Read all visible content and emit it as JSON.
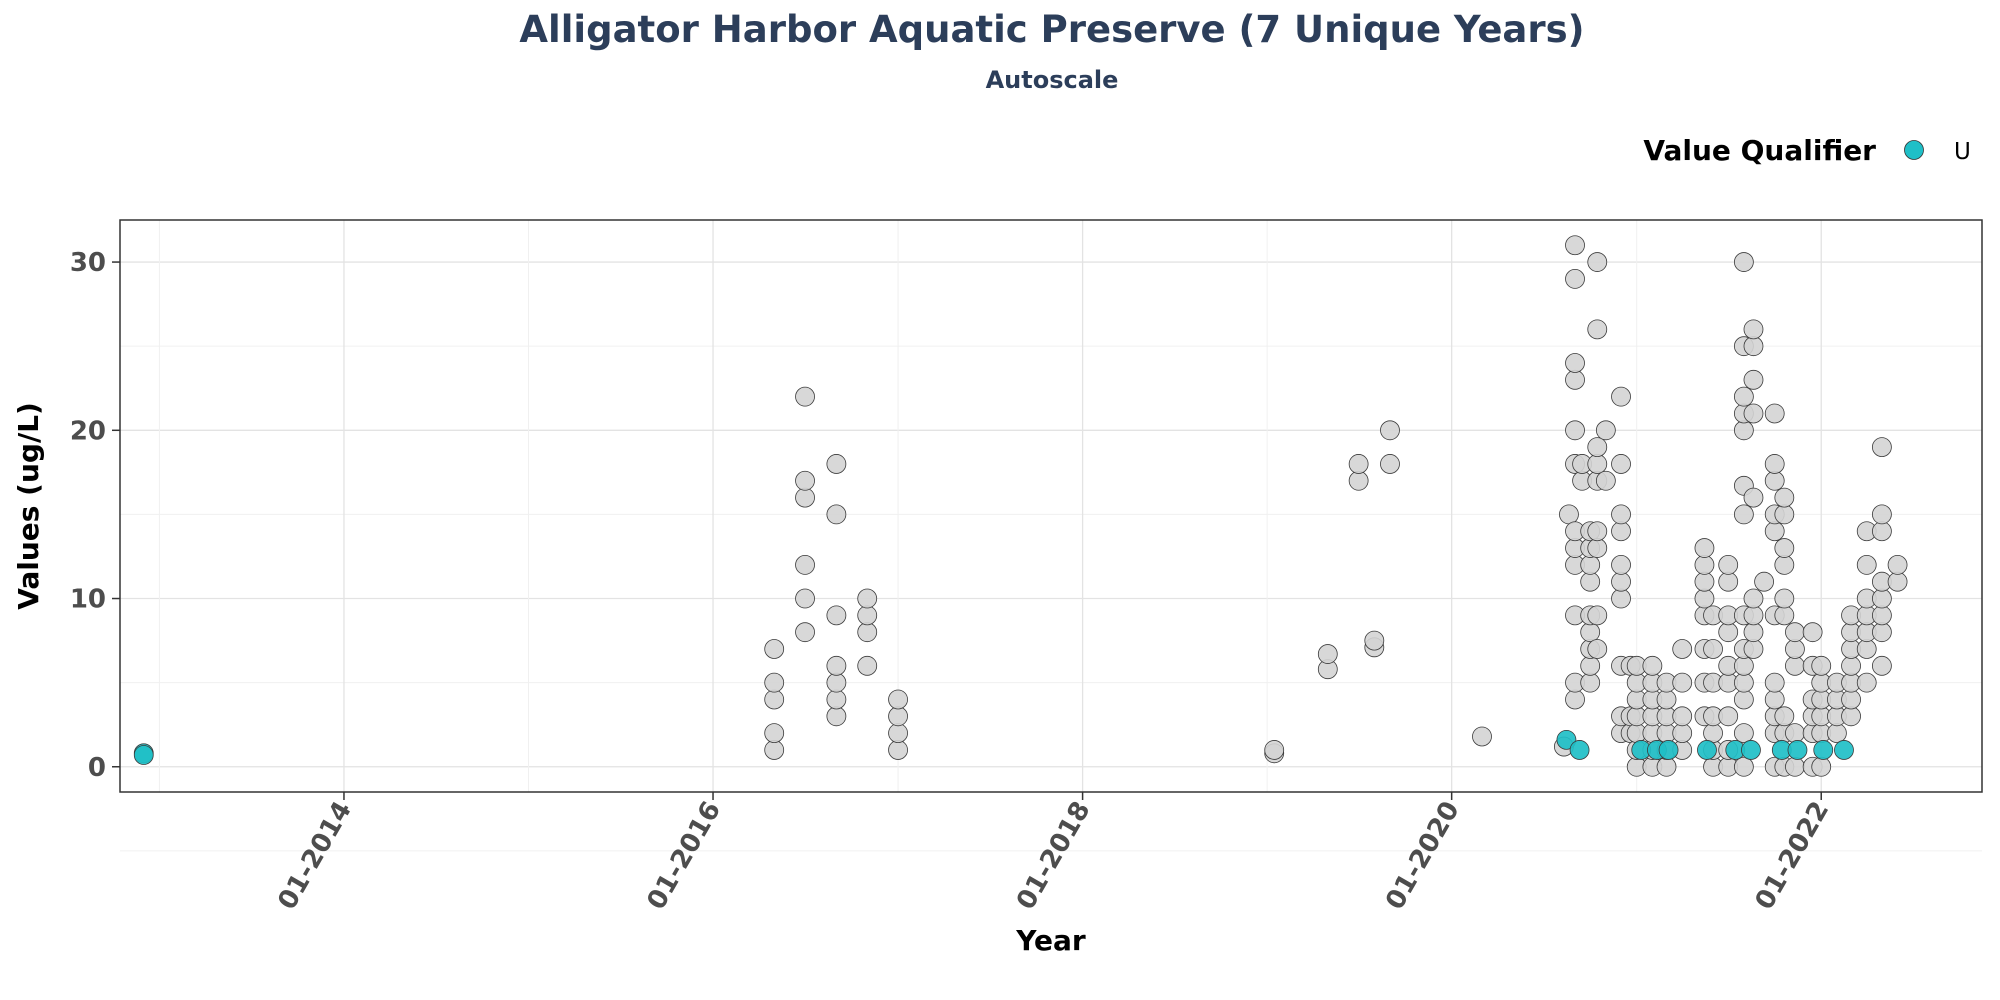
{
  "chart_data": {
    "type": "scatter",
    "title": "Alligator Harbor Aquatic Preserve (7 Unique Years)",
    "subtitle": "Autoscale",
    "xlabel": "Year",
    "ylabel": "Values (ug/L)",
    "legend": {
      "title": "Value Qualifier",
      "entries": [
        "U"
      ],
      "placement": "top-right"
    },
    "x_tick_labels": [
      "01-2014",
      "01-2016",
      "01-2018",
      "01-2020",
      "01-2022"
    ],
    "y_tick_labels": [
      "0",
      "10",
      "20",
      "30"
    ],
    "xlim": [
      "2012-10-15",
      "2022-11-15"
    ],
    "ylim": [
      -1.5,
      32.5
    ],
    "grid": true,
    "colors": {
      "qualified": "#1fbfc7",
      "unqualified": "#d4d4d4",
      "title": "#2c3e5a"
    },
    "series": [
      {
        "qualifier": "none",
        "points": [
          [
            "2016-05-01",
            1
          ],
          [
            "2016-05-01",
            2
          ],
          [
            "2016-05-01",
            4
          ],
          [
            "2016-05-01",
            5
          ],
          [
            "2016-05-01",
            7
          ],
          [
            "2016-07-01",
            8
          ],
          [
            "2016-07-01",
            10
          ],
          [
            "2016-07-01",
            12
          ],
          [
            "2016-07-01",
            16
          ],
          [
            "2016-07-01",
            17
          ],
          [
            "2016-07-01",
            22
          ],
          [
            "2016-09-01",
            3
          ],
          [
            "2016-09-01",
            4
          ],
          [
            "2016-09-01",
            5
          ],
          [
            "2016-09-01",
            6
          ],
          [
            "2016-09-01",
            9
          ],
          [
            "2016-09-01",
            15
          ],
          [
            "2016-09-01",
            18
          ],
          [
            "2016-11-01",
            6
          ],
          [
            "2016-11-01",
            8
          ],
          [
            "2016-11-01",
            9
          ],
          [
            "2016-11-01",
            10
          ],
          [
            "2017-01-01",
            1
          ],
          [
            "2017-01-01",
            2
          ],
          [
            "2017-01-01",
            3
          ],
          [
            "2017-01-01",
            4
          ],
          [
            "2019-01-15",
            0.8
          ],
          [
            "2019-01-15",
            1
          ],
          [
            "2019-05-01",
            5.8
          ],
          [
            "2019-05-01",
            6.7
          ],
          [
            "2019-07-01",
            17
          ],
          [
            "2019-07-01",
            18
          ],
          [
            "2019-08-01",
            7.1
          ],
          [
            "2019-08-01",
            7.5
          ],
          [
            "2019-09-01",
            18
          ],
          [
            "2019-09-01",
            20
          ],
          [
            "2020-03-01",
            1.8
          ],
          [
            "2020-08-10",
            1.2
          ],
          [
            "2020-08-20",
            15
          ],
          [
            "2020-09-01",
            4
          ],
          [
            "2020-09-01",
            5
          ],
          [
            "2020-09-01",
            9
          ],
          [
            "2020-09-01",
            12
          ],
          [
            "2020-09-01",
            13
          ],
          [
            "2020-09-01",
            14
          ],
          [
            "2020-09-01",
            18
          ],
          [
            "2020-09-01",
            20
          ],
          [
            "2020-09-01",
            23
          ],
          [
            "2020-09-01",
            24
          ],
          [
            "2020-09-01",
            29
          ],
          [
            "2020-09-01",
            31
          ],
          [
            "2020-09-15",
            17
          ],
          [
            "2020-09-15",
            18
          ],
          [
            "2020-10-01",
            5
          ],
          [
            "2020-10-01",
            6
          ],
          [
            "2020-10-01",
            7
          ],
          [
            "2020-10-01",
            8
          ],
          [
            "2020-10-01",
            9
          ],
          [
            "2020-10-01",
            11
          ],
          [
            "2020-10-01",
            12
          ],
          [
            "2020-10-01",
            13
          ],
          [
            "2020-10-01",
            14
          ],
          [
            "2020-10-15",
            7
          ],
          [
            "2020-10-15",
            9
          ],
          [
            "2020-10-15",
            13
          ],
          [
            "2020-10-15",
            14
          ],
          [
            "2020-10-15",
            17
          ],
          [
            "2020-10-15",
            18
          ],
          [
            "2020-10-15",
            19
          ],
          [
            "2020-10-15",
            26
          ],
          [
            "2020-10-15",
            30
          ],
          [
            "2020-11-01",
            17
          ],
          [
            "2020-11-01",
            20
          ],
          [
            "2020-12-01",
            2
          ],
          [
            "2020-12-01",
            3
          ],
          [
            "2020-12-01",
            6
          ],
          [
            "2020-12-01",
            10
          ],
          [
            "2020-12-01",
            11
          ],
          [
            "2020-12-01",
            12
          ],
          [
            "2020-12-01",
            14
          ],
          [
            "2020-12-01",
            15
          ],
          [
            "2020-12-01",
            18
          ],
          [
            "2020-12-01",
            22
          ],
          [
            "2020-12-20",
            2
          ],
          [
            "2020-12-20",
            3
          ],
          [
            "2020-12-20",
            6
          ],
          [
            "2021-01-01",
            0
          ],
          [
            "2021-01-01",
            1
          ],
          [
            "2021-01-01",
            2
          ],
          [
            "2021-01-01",
            3
          ],
          [
            "2021-01-01",
            4
          ],
          [
            "2021-01-01",
            5
          ],
          [
            "2021-01-01",
            6
          ],
          [
            "2021-02-01",
            0
          ],
          [
            "2021-02-01",
            1
          ],
          [
            "2021-02-01",
            2
          ],
          [
            "2021-02-01",
            3
          ],
          [
            "2021-02-01",
            4
          ],
          [
            "2021-02-01",
            5
          ],
          [
            "2021-02-01",
            6
          ],
          [
            "2021-03-01",
            0
          ],
          [
            "2021-03-01",
            1
          ],
          [
            "2021-03-01",
            2
          ],
          [
            "2021-03-01",
            3
          ],
          [
            "2021-03-01",
            4
          ],
          [
            "2021-03-01",
            5
          ],
          [
            "2021-04-01",
            1
          ],
          [
            "2021-04-01",
            2
          ],
          [
            "2021-04-01",
            3
          ],
          [
            "2021-04-01",
            5
          ],
          [
            "2021-04-01",
            7
          ],
          [
            "2021-05-15",
            3
          ],
          [
            "2021-05-15",
            5
          ],
          [
            "2021-05-15",
            7
          ],
          [
            "2021-05-15",
            9
          ],
          [
            "2021-05-15",
            10
          ],
          [
            "2021-05-15",
            11
          ],
          [
            "2021-05-15",
            12
          ],
          [
            "2021-05-15",
            13
          ],
          [
            "2021-06-01",
            0
          ],
          [
            "2021-06-01",
            1
          ],
          [
            "2021-06-01",
            2
          ],
          [
            "2021-06-01",
            3
          ],
          [
            "2021-06-01",
            5
          ],
          [
            "2021-06-01",
            7
          ],
          [
            "2021-06-01",
            9
          ],
          [
            "2021-07-01",
            0
          ],
          [
            "2021-07-01",
            1
          ],
          [
            "2021-07-01",
            3
          ],
          [
            "2021-07-01",
            5
          ],
          [
            "2021-07-01",
            6
          ],
          [
            "2021-07-01",
            8
          ],
          [
            "2021-07-01",
            9
          ],
          [
            "2021-07-01",
            11
          ],
          [
            "2021-07-01",
            12
          ],
          [
            "2021-08-01",
            0
          ],
          [
            "2021-08-01",
            2
          ],
          [
            "2021-08-01",
            4
          ],
          [
            "2021-08-01",
            5
          ],
          [
            "2021-08-01",
            6
          ],
          [
            "2021-08-01",
            7
          ],
          [
            "2021-08-01",
            9
          ],
          [
            "2021-08-01",
            15
          ],
          [
            "2021-08-01",
            16.7
          ],
          [
            "2021-08-01",
            20
          ],
          [
            "2021-08-01",
            21
          ],
          [
            "2021-08-01",
            22
          ],
          [
            "2021-08-01",
            25
          ],
          [
            "2021-08-01",
            30
          ],
          [
            "2021-08-20",
            7
          ],
          [
            "2021-08-20",
            8
          ],
          [
            "2021-08-20",
            9
          ],
          [
            "2021-08-20",
            10
          ],
          [
            "2021-08-20",
            16
          ],
          [
            "2021-08-20",
            21
          ],
          [
            "2021-08-20",
            23
          ],
          [
            "2021-08-20",
            25
          ],
          [
            "2021-08-20",
            26
          ],
          [
            "2021-09-10",
            11
          ],
          [
            "2021-10-01",
            0
          ],
          [
            "2021-10-01",
            2
          ],
          [
            "2021-10-01",
            3
          ],
          [
            "2021-10-01",
            4
          ],
          [
            "2021-10-01",
            5
          ],
          [
            "2021-10-01",
            9
          ],
          [
            "2021-10-01",
            14
          ],
          [
            "2021-10-01",
            15
          ],
          [
            "2021-10-01",
            17
          ],
          [
            "2021-10-01",
            18
          ],
          [
            "2021-10-01",
            21
          ],
          [
            "2021-10-20",
            0
          ],
          [
            "2021-10-20",
            2
          ],
          [
            "2021-10-20",
            3
          ],
          [
            "2021-10-20",
            9
          ],
          [
            "2021-10-20",
            10
          ],
          [
            "2021-10-20",
            12
          ],
          [
            "2021-10-20",
            13
          ],
          [
            "2021-10-20",
            15
          ],
          [
            "2021-10-20",
            16
          ],
          [
            "2021-11-10",
            0
          ],
          [
            "2021-11-10",
            2
          ],
          [
            "2021-11-10",
            6
          ],
          [
            "2021-11-10",
            7
          ],
          [
            "2021-11-10",
            8
          ],
          [
            "2021-12-15",
            0
          ],
          [
            "2021-12-15",
            2
          ],
          [
            "2021-12-15",
            3
          ],
          [
            "2021-12-15",
            4
          ],
          [
            "2021-12-15",
            6
          ],
          [
            "2021-12-15",
            8
          ],
          [
            "2022-01-01",
            0
          ],
          [
            "2022-01-01",
            2
          ],
          [
            "2022-01-01",
            3
          ],
          [
            "2022-01-01",
            4
          ],
          [
            "2022-01-01",
            5
          ],
          [
            "2022-01-01",
            6
          ],
          [
            "2022-02-01",
            2
          ],
          [
            "2022-02-01",
            3
          ],
          [
            "2022-02-01",
            4
          ],
          [
            "2022-02-01",
            5
          ],
          [
            "2022-03-01",
            3
          ],
          [
            "2022-03-01",
            4
          ],
          [
            "2022-03-01",
            5
          ],
          [
            "2022-03-01",
            6
          ],
          [
            "2022-03-01",
            7
          ],
          [
            "2022-03-01",
            8
          ],
          [
            "2022-03-01",
            9
          ],
          [
            "2022-04-01",
            5
          ],
          [
            "2022-04-01",
            7
          ],
          [
            "2022-04-01",
            8
          ],
          [
            "2022-04-01",
            9
          ],
          [
            "2022-04-01",
            10
          ],
          [
            "2022-04-01",
            12
          ],
          [
            "2022-04-01",
            14
          ],
          [
            "2022-05-01",
            6
          ],
          [
            "2022-05-01",
            8
          ],
          [
            "2022-05-01",
            9
          ],
          [
            "2022-05-01",
            10
          ],
          [
            "2022-05-01",
            11
          ],
          [
            "2022-05-01",
            14
          ],
          [
            "2022-05-01",
            15
          ],
          [
            "2022-05-01",
            19
          ],
          [
            "2022-06-01",
            11
          ],
          [
            "2022-06-01",
            12
          ]
        ]
      },
      {
        "qualifier": "U",
        "points": [
          [
            "2012-12-01",
            0.8
          ],
          [
            "2012-12-01",
            0.7
          ],
          [
            "2020-08-15",
            1.6
          ],
          [
            "2020-09-10",
            1
          ],
          [
            "2021-01-10",
            1
          ],
          [
            "2021-02-10",
            1
          ],
          [
            "2021-03-05",
            1
          ],
          [
            "2021-05-20",
            1
          ],
          [
            "2021-07-15",
            1
          ],
          [
            "2021-08-15",
            1
          ],
          [
            "2021-10-15",
            1
          ],
          [
            "2021-11-15",
            1
          ],
          [
            "2022-01-05",
            1
          ],
          [
            "2022-02-15",
            1
          ]
        ]
      }
    ]
  }
}
